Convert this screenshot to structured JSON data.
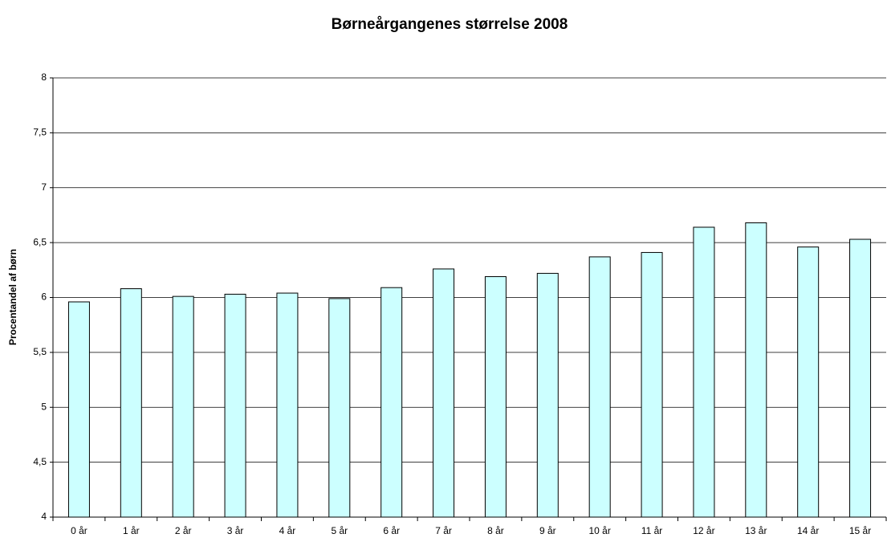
{
  "chart_data": {
    "type": "bar",
    "title": "Børneårgangenes størrelse 2008",
    "ylabel": "Procentandel af børn",
    "categories": [
      "0 år",
      "1 år",
      "2 år",
      "3 år",
      "4 år",
      "5 år",
      "6 år",
      "7 år",
      "8 år",
      "9 år",
      "10 år",
      "11 år",
      "12 år",
      "13 år",
      "14 år",
      "15 år"
    ],
    "values": [
      5.96,
      6.08,
      6.01,
      6.03,
      6.04,
      5.99,
      6.09,
      6.26,
      6.19,
      6.22,
      6.37,
      6.41,
      6.64,
      6.68,
      6.46,
      6.53
    ],
    "color": "#ccffff",
    "ylim": [
      4,
      8
    ],
    "yticks": [
      4,
      {
        "value": 4.5,
        "label": "4,5"
      },
      5,
      {
        "value": 5.5,
        "label": "5,5"
      },
      6,
      {
        "value": 6.5,
        "label": "6,5"
      },
      7,
      {
        "value": 7.5,
        "label": "7,5"
      },
      8
    ],
    "grid": true
  }
}
